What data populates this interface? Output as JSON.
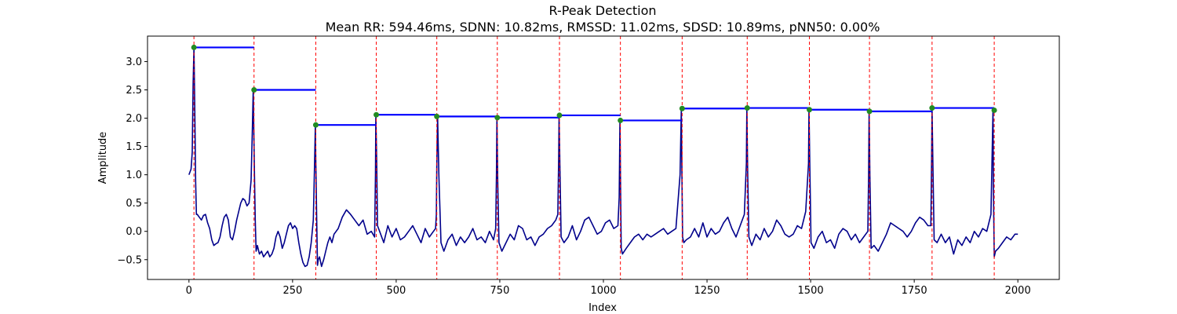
{
  "chart_data": {
    "type": "line",
    "title": "R-Peak Detection",
    "subtitle": "Mean RR: 594.46ms, SDNN: 10.82ms, RMSSD: 11.02ms, SDSD: 10.89ms, pNN50: 0.00%",
    "xlabel": "Index",
    "ylabel": "Amplitude",
    "xlim": [
      -100,
      2100
    ],
    "ylim": [
      -0.85,
      3.45
    ],
    "x_ticks": [
      0,
      250,
      500,
      750,
      1000,
      1250,
      1500,
      1750,
      2000
    ],
    "y_ticks": [
      -0.5,
      0.0,
      0.5,
      1.0,
      1.5,
      2.0,
      2.5,
      3.0
    ],
    "x_tick_labels": [
      "0",
      "250",
      "500",
      "750",
      "1000",
      "1250",
      "1500",
      "1750",
      "2000"
    ],
    "y_tick_labels": [
      "−0.5",
      "0.0",
      "0.5",
      "1.0",
      "1.5",
      "2.0",
      "2.5",
      "3.0"
    ],
    "grid": false,
    "colors": {
      "signal": "#00008b",
      "peak_marker": "#228b22",
      "peak_line": "#ff0000",
      "rr_line": "#0000ff"
    },
    "signal": {
      "x": [
        0,
        5,
        8,
        10,
        12,
        14,
        16,
        18,
        20,
        25,
        30,
        35,
        40,
        45,
        50,
        55,
        60,
        65,
        70,
        75,
        80,
        85,
        90,
        95,
        100,
        105,
        110,
        115,
        120,
        125,
        130,
        135,
        140,
        145,
        150,
        153,
        155,
        156,
        158,
        160,
        162,
        165,
        170,
        175,
        180,
        185,
        190,
        195,
        200,
        205,
        210,
        215,
        220,
        225,
        230,
        235,
        240,
        245,
        250,
        255,
        260,
        265,
        270,
        275,
        280,
        285,
        290,
        295,
        300,
        303,
        305,
        306,
        308,
        310,
        312,
        315,
        320,
        325,
        330,
        335,
        340,
        345,
        350,
        360,
        370,
        380,
        390,
        400,
        410,
        420,
        430,
        440,
        448,
        450,
        451,
        453,
        455,
        460,
        470,
        480,
        490,
        500,
        510,
        520,
        530,
        540,
        550,
        560,
        570,
        580,
        590,
        595,
        597,
        598,
        600,
        603,
        608,
        615,
        625,
        635,
        645,
        655,
        665,
        675,
        685,
        695,
        705,
        715,
        725,
        735,
        740,
        742,
        743,
        745,
        748,
        755,
        765,
        775,
        785,
        795,
        805,
        815,
        825,
        835,
        845,
        855,
        865,
        875,
        885,
        890,
        892,
        893,
        895,
        898,
        905,
        915,
        925,
        935,
        945,
        955,
        965,
        975,
        985,
        995,
        1005,
        1015,
        1025,
        1035,
        1038,
        1040,
        1041,
        1043,
        1046,
        1055,
        1065,
        1075,
        1085,
        1095,
        1105,
        1115,
        1125,
        1135,
        1145,
        1155,
        1165,
        1175,
        1185,
        1188,
        1189,
        1191,
        1194,
        1200,
        1210,
        1220,
        1230,
        1240,
        1250,
        1260,
        1270,
        1280,
        1290,
        1300,
        1310,
        1320,
        1330,
        1340,
        1345,
        1346,
        1348,
        1351,
        1358,
        1368,
        1378,
        1388,
        1398,
        1408,
        1418,
        1428,
        1438,
        1448,
        1458,
        1468,
        1478,
        1488,
        1495,
        1496,
        1498,
        1501,
        1508,
        1518,
        1528,
        1538,
        1548,
        1558,
        1568,
        1578,
        1588,
        1598,
        1608,
        1618,
        1628,
        1638,
        1640,
        1641,
        1643,
        1646,
        1653,
        1663,
        1673,
        1683,
        1693,
        1703,
        1713,
        1723,
        1733,
        1743,
        1753,
        1763,
        1773,
        1783,
        1790,
        1792,
        1793,
        1795,
        1798,
        1805,
        1815,
        1825,
        1835,
        1845,
        1855,
        1865,
        1875,
        1885,
        1895,
        1905,
        1915,
        1925,
        1935,
        1940,
        1941,
        1943,
        1946,
        1953,
        1963,
        1973,
        1983,
        1993,
        2000
      ],
      "y": [
        1.0,
        1.1,
        1.4,
        2.6,
        3.25,
        2.2,
        0.9,
        0.3,
        0.3,
        0.25,
        0.2,
        0.28,
        0.3,
        0.15,
        0.05,
        -0.15,
        -0.25,
        -0.22,
        -0.2,
        -0.1,
        0.1,
        0.25,
        0.3,
        0.2,
        -0.1,
        -0.15,
        0.0,
        0.2,
        0.35,
        0.5,
        0.58,
        0.55,
        0.45,
        0.5,
        0.9,
        1.8,
        2.5,
        2.0,
        1.0,
        0.2,
        -0.35,
        -0.25,
        -0.4,
        -0.35,
        -0.45,
        -0.4,
        -0.35,
        -0.45,
        -0.4,
        -0.3,
        -0.1,
        0.0,
        -0.1,
        -0.3,
        -0.2,
        -0.05,
        0.1,
        0.15,
        0.05,
        0.1,
        0.05,
        -0.2,
        -0.4,
        -0.55,
        -0.62,
        -0.6,
        -0.45,
        -0.2,
        0.2,
        1.2,
        1.88,
        1.3,
        0.3,
        -0.6,
        -0.5,
        -0.45,
        -0.62,
        -0.5,
        -0.35,
        -0.2,
        -0.1,
        -0.2,
        -0.05,
        0.05,
        0.25,
        0.38,
        0.3,
        0.2,
        0.1,
        0.2,
        -0.05,
        0.0,
        -0.1,
        1.0,
        2.06,
        1.2,
        0.1,
        0.0,
        -0.2,
        0.1,
        -0.1,
        0.05,
        -0.15,
        -0.1,
        0.0,
        0.1,
        -0.05,
        -0.2,
        0.05,
        -0.1,
        0.0,
        0.05,
        0.3,
        1.2,
        2.03,
        1.0,
        -0.2,
        -0.35,
        -0.15,
        -0.05,
        -0.25,
        -0.1,
        -0.2,
        -0.1,
        0.05,
        -0.15,
        -0.1,
        -0.2,
        0.0,
        -0.15,
        0.05,
        1.0,
        2.01,
        0.9,
        -0.2,
        -0.35,
        -0.2,
        -0.05,
        -0.15,
        0.1,
        0.05,
        -0.15,
        -0.1,
        -0.25,
        -0.1,
        -0.05,
        0.05,
        0.1,
        0.2,
        0.3,
        1.3,
        2.05,
        1.2,
        -0.1,
        -0.2,
        -0.1,
        0.1,
        -0.15,
        0.0,
        0.2,
        0.25,
        0.1,
        -0.05,
        0.0,
        0.15,
        0.2,
        0.05,
        0.1,
        0.6,
        1.96,
        1.0,
        -0.3,
        -0.4,
        -0.3,
        -0.2,
        -0.1,
        -0.05,
        -0.15,
        -0.05,
        -0.1,
        -0.05,
        0.0,
        0.05,
        -0.05,
        0.0,
        0.05,
        1.0,
        2.17,
        1.4,
        -0.1,
        -0.2,
        -0.15,
        -0.1,
        0.05,
        -0.1,
        0.15,
        -0.1,
        0.05,
        -0.05,
        0.0,
        0.15,
        0.25,
        0.05,
        -0.1,
        0.1,
        0.3,
        1.2,
        2.18,
        1.1,
        -0.1,
        -0.25,
        -0.05,
        -0.15,
        0.05,
        -0.1,
        0.0,
        0.2,
        0.1,
        -0.05,
        -0.1,
        -0.05,
        0.1,
        0.05,
        0.35,
        1.2,
        2.15,
        1.2,
        -0.2,
        -0.3,
        -0.1,
        0.0,
        -0.2,
        -0.15,
        -0.3,
        -0.05,
        0.05,
        0.0,
        -0.15,
        -0.05,
        -0.2,
        -0.1,
        0.0,
        1.0,
        2.12,
        1.0,
        -0.3,
        -0.25,
        -0.35,
        -0.2,
        -0.05,
        0.15,
        0.1,
        0.05,
        0.0,
        -0.1,
        0.0,
        0.15,
        0.25,
        0.2,
        0.1,
        0.1,
        1.3,
        2.18,
        1.2,
        -0.15,
        -0.2,
        -0.05,
        -0.2,
        -0.1,
        -0.4,
        -0.15,
        -0.25,
        -0.1,
        -0.2,
        0.0,
        -0.1,
        0.05,
        0.0,
        0.3,
        2.14,
        0.8,
        -0.45,
        -0.35,
        -0.3,
        -0.2,
        -0.1,
        -0.15,
        -0.05,
        -0.05
      ]
    },
    "peaks": [
      {
        "x": 12,
        "y": 3.25
      },
      {
        "x": 157,
        "y": 2.5
      },
      {
        "x": 306,
        "y": 1.88
      },
      {
        "x": 452,
        "y": 2.06
      },
      {
        "x": 598,
        "y": 2.03
      },
      {
        "x": 744,
        "y": 2.01
      },
      {
        "x": 894,
        "y": 2.05
      },
      {
        "x": 1041,
        "y": 1.96
      },
      {
        "x": 1190,
        "y": 2.17
      },
      {
        "x": 1347,
        "y": 2.18
      },
      {
        "x": 1497,
        "y": 2.15
      },
      {
        "x": 1642,
        "y": 2.12
      },
      {
        "x": 1793,
        "y": 2.18
      },
      {
        "x": 1943,
        "y": 2.14
      }
    ]
  }
}
